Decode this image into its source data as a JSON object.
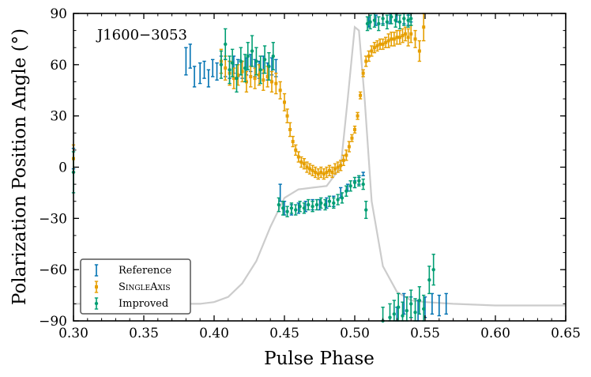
{
  "chart_data": {
    "type": "scatter",
    "xlabel": "Pulse Phase",
    "ylabel": "Polarization Position Angle (°)",
    "xlim": [
      0.3,
      0.65
    ],
    "ylim": [
      -90,
      90
    ],
    "xticks": [
      "0.30",
      "0.35",
      "0.40",
      "0.45",
      "0.50",
      "0.55",
      "0.60",
      "0.65"
    ],
    "yticks": [
      "90",
      "60",
      "30",
      "0",
      "−30",
      "−60",
      "−90"
    ],
    "annotation": "J1600−3053",
    "legend_position": "lower-left",
    "profile": {
      "name": "pulse profile (scaled)",
      "color": "#cccccc",
      "x": [
        0.3,
        0.36,
        0.39,
        0.4,
        0.41,
        0.42,
        0.43,
        0.44,
        0.45,
        0.46,
        0.47,
        0.48,
        0.49,
        0.495,
        0.5,
        0.503,
        0.507,
        0.512,
        0.52,
        0.53,
        0.54,
        0.55,
        0.57,
        0.6,
        0.65
      ],
      "y": [
        -80,
        -80,
        -80,
        -79,
        -76,
        -68,
        -55,
        -35,
        -18,
        -13,
        -12,
        -11,
        0,
        40,
        82,
        80,
        40,
        -20,
        -58,
        -73,
        -78,
        -79,
        -80,
        -81,
        -81
      ]
    },
    "series": [
      {
        "name": "Reference",
        "color": "#0072b2",
        "marker": "none",
        "x": [
          0.3,
          0.38,
          0.383,
          0.386,
          0.39,
          0.393,
          0.396,
          0.399,
          0.402,
          0.405,
          0.408,
          0.411,
          0.414,
          0.417,
          0.42,
          0.423,
          0.426,
          0.429,
          0.432,
          0.435,
          0.438,
          0.441,
          0.444,
          0.447,
          0.45,
          0.455,
          0.46,
          0.465,
          0.47,
          0.475,
          0.48,
          0.485,
          0.49,
          0.495,
          0.5,
          0.503,
          0.506,
          0.51,
          0.515,
          0.52,
          0.525,
          0.53,
          0.535,
          0.538,
          0.54,
          0.53,
          0.535,
          0.54,
          0.545,
          0.55,
          0.555,
          0.56,
          0.565
        ],
        "y": [
          5,
          62,
          65,
          53,
          55,
          57,
          52,
          58,
          56,
          60,
          58,
          57,
          60,
          58,
          57,
          59,
          61,
          58,
          57,
          60,
          56,
          59,
          58,
          -15,
          -24,
          -25,
          -24,
          -23,
          -22,
          -22,
          -21,
          -20,
          -15,
          -12,
          -10,
          -8,
          -4,
          85,
          86,
          87,
          87,
          88,
          87,
          86,
          88,
          -88,
          -80,
          -82,
          -84,
          -82,
          -80,
          -81,
          -80
        ],
        "err": [
          6,
          8,
          7,
          6,
          6,
          5,
          5,
          5,
          5,
          5,
          5,
          5,
          5,
          5,
          5,
          5,
          5,
          5,
          5,
          5,
          5,
          5,
          5,
          5,
          4,
          3,
          3,
          3,
          3,
          3,
          3,
          3,
          3,
          2,
          2,
          2,
          1,
          3,
          3,
          3,
          3,
          3,
          3,
          3,
          3,
          6,
          6,
          6,
          6,
          6,
          6,
          6,
          6
        ]
      },
      {
        "name": "SingleAxis",
        "color": "#e69f00",
        "marker": "square",
        "x": [
          0.3,
          0.405,
          0.408,
          0.411,
          0.414,
          0.417,
          0.42,
          0.423,
          0.426,
          0.429,
          0.432,
          0.435,
          0.438,
          0.441,
          0.444,
          0.447,
          0.45,
          0.452,
          0.454,
          0.456,
          0.458,
          0.46,
          0.462,
          0.464,
          0.466,
          0.468,
          0.47,
          0.472,
          0.474,
          0.476,
          0.478,
          0.48,
          0.482,
          0.484,
          0.486,
          0.488,
          0.49,
          0.492,
          0.494,
          0.496,
          0.498,
          0.5,
          0.502,
          0.504,
          0.506,
          0.508,
          0.51,
          0.512,
          0.514,
          0.516,
          0.518,
          0.52,
          0.522,
          0.524,
          0.526,
          0.528,
          0.53,
          0.532,
          0.534,
          0.536,
          0.538,
          0.54,
          0.543,
          0.546,
          0.549
        ],
        "y": [
          5,
          62,
          58,
          55,
          52,
          54,
          56,
          50,
          53,
          52,
          54,
          51,
          53,
          50,
          49,
          45,
          38,
          30,
          22,
          15,
          10,
          6,
          3,
          2,
          0,
          -1,
          -2,
          -3,
          -4,
          -3,
          -4,
          -3,
          -2,
          -3,
          -1,
          0,
          1,
          4,
          7,
          12,
          17,
          22,
          30,
          42,
          55,
          62,
          65,
          68,
          70,
          71,
          72,
          72,
          73,
          74,
          75,
          75,
          76,
          76,
          77,
          78,
          76,
          78,
          75,
          68,
          82
        ],
        "err": [
          8,
          7,
          7,
          7,
          6,
          6,
          6,
          6,
          6,
          6,
          6,
          6,
          6,
          6,
          6,
          5,
          5,
          4,
          4,
          3,
          3,
          3,
          3,
          3,
          3,
          3,
          3,
          3,
          3,
          3,
          3,
          3,
          3,
          3,
          3,
          3,
          3,
          3,
          3,
          3,
          2,
          2,
          2,
          2,
          2,
          3,
          3,
          3,
          3,
          3,
          3,
          3,
          3,
          4,
          4,
          4,
          4,
          4,
          4,
          4,
          5,
          5,
          5,
          6,
          8
        ]
      },
      {
        "name": "Improved",
        "color": "#009e73",
        "marker": "circle",
        "x": [
          0.3,
          0.405,
          0.408,
          0.411,
          0.413,
          0.416,
          0.419,
          0.422,
          0.424,
          0.427,
          0.43,
          0.433,
          0.436,
          0.439,
          0.442,
          0.446,
          0.449,
          0.452,
          0.455,
          0.458,
          0.461,
          0.464,
          0.467,
          0.47,
          0.473,
          0.476,
          0.479,
          0.482,
          0.485,
          0.488,
          0.491,
          0.494,
          0.497,
          0.5,
          0.503,
          0.506,
          0.508,
          0.509,
          0.511,
          0.514,
          0.517,
          0.52,
          0.523,
          0.526,
          0.529,
          0.532,
          0.535,
          0.538,
          0.54,
          0.52,
          0.525,
          0.528,
          0.531,
          0.534,
          0.537,
          0.54,
          0.543,
          0.546,
          0.549,
          0.553,
          0.556
        ],
        "y": [
          -3,
          60,
          72,
          57,
          61,
          52,
          62,
          58,
          65,
          68,
          62,
          57,
          63,
          59,
          65,
          -22,
          -24,
          -26,
          -24,
          -25,
          -23,
          -24,
          -22,
          -23,
          -22,
          -21,
          -22,
          -20,
          -21,
          -19,
          -18,
          -14,
          -11,
          -9,
          -8,
          -10,
          -25,
          84,
          85,
          86,
          84,
          87,
          85,
          88,
          86,
          85,
          87,
          86,
          87,
          -90,
          -88,
          -86,
          -82,
          -87,
          -84,
          -80,
          -85,
          -78,
          -83,
          -66,
          -60
        ],
        "err": [
          12,
          8,
          9,
          8,
          8,
          8,
          8,
          8,
          8,
          9,
          8,
          8,
          8,
          8,
          8,
          4,
          4,
          3,
          3,
          3,
          3,
          3,
          3,
          3,
          3,
          3,
          3,
          3,
          3,
          3,
          3,
          3,
          3,
          3,
          3,
          3,
          5,
          4,
          4,
          4,
          4,
          4,
          4,
          4,
          4,
          4,
          4,
          4,
          4,
          8,
          8,
          8,
          8,
          8,
          8,
          8,
          8,
          8,
          8,
          8,
          9
        ]
      }
    ]
  }
}
